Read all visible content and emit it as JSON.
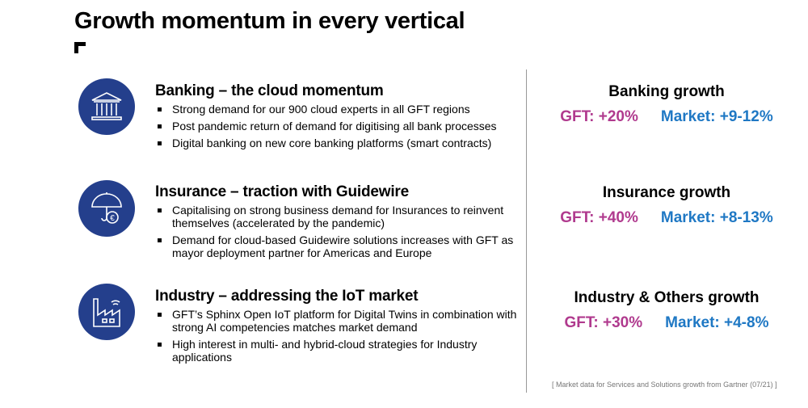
{
  "title": "Growth momentum  in every vertical",
  "colors": {
    "icon_bg": "#243f8c",
    "gft": "#b03a8e",
    "market": "#1f78c4"
  },
  "sections": [
    {
      "icon": "bank-icon",
      "heading": "Banking – the cloud momentum",
      "bullets": [
        "Strong demand for our 900 cloud experts in all GFT regions",
        "Post pandemic return of demand for digitising all bank processes",
        "Digital banking on new core banking platforms (smart contracts)"
      ]
    },
    {
      "icon": "umbrella-euro-icon",
      "heading": "Insurance – traction with Guidewire",
      "bullets": [
        "Capitalising on strong business demand for Insurances to reinvent themselves (accelerated by the pandemic)",
        "Demand for cloud-based Guidewire solutions increases with GFT as mayor deployment partner for Americas and Europe"
      ]
    },
    {
      "icon": "factory-iot-icon",
      "heading": "Industry – addressing the IoT market",
      "bullets": [
        "GFT’s Sphinx Open IoT platform for Digital Twins in combination with strong AI competencies matches market demand",
        "High interest in multi- and hybrid-cloud strategies for Industry applications"
      ]
    }
  ],
  "growth": [
    {
      "title": "Banking growth",
      "gft": "GFT: +20%",
      "market": "Market: +9-12%"
    },
    {
      "title": "Insurance growth",
      "gft": "GFT: +40%",
      "market": "Market: +8-13%"
    },
    {
      "title": "Industry & Others growth",
      "gft": "GFT: +30%",
      "market": "Market: +4-8%"
    }
  ],
  "footnote": "[ Market data for Services and Solutions growth from Gartner (07/21) ]"
}
